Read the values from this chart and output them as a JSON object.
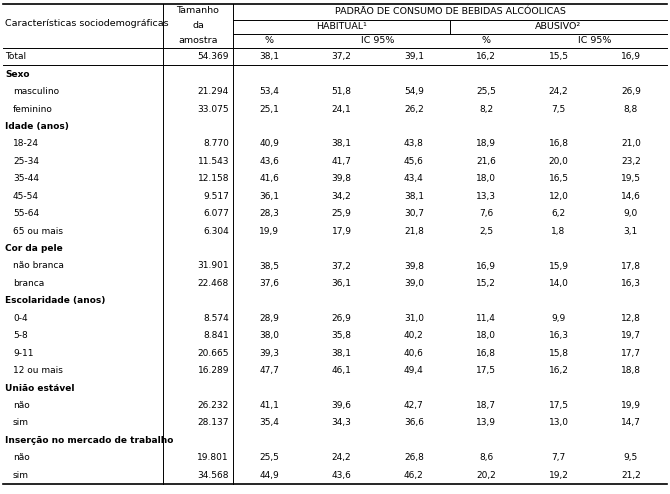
{
  "title_main": "PADRÃO DE CONSUMO DE BEBIDAS ALCÓOLICAS",
  "col1_label": "Características sociodemográficas",
  "tamanho_label": [
    "Tamanho",
    "da",
    "amostra"
  ],
  "habitual_label": "HABITUAL¹",
  "abusivo_label": "ABUSIVO²",
  "pct_label": "%",
  "ic_label": "IC 95%",
  "rows": [
    {
      "label": "Total",
      "indent": false,
      "bold": false,
      "sample": "54.369",
      "vals": [
        "38,1",
        "37,2",
        "39,1",
        "16,2",
        "15,5",
        "16,9"
      ]
    },
    {
      "label": "Sexo",
      "indent": false,
      "bold": true,
      "sample": "",
      "vals": [
        "",
        "",
        "",
        "",
        "",
        ""
      ]
    },
    {
      "label": "masculino",
      "indent": true,
      "bold": false,
      "sample": "21.294",
      "vals": [
        "53,4",
        "51,8",
        "54,9",
        "25,5",
        "24,2",
        "26,9"
      ]
    },
    {
      "label": "feminino",
      "indent": true,
      "bold": false,
      "sample": "33.075",
      "vals": [
        "25,1",
        "24,1",
        "26,2",
        "8,2",
        "7,5",
        "8,8"
      ]
    },
    {
      "label": "Idade (anos)",
      "indent": false,
      "bold": true,
      "sample": "",
      "vals": [
        "",
        "",
        "",
        "",
        "",
        ""
      ]
    },
    {
      "label": "18-24",
      "indent": true,
      "bold": false,
      "sample": "8.770",
      "vals": [
        "40,9",
        "38,1",
        "43,8",
        "18,9",
        "16,8",
        "21,0"
      ]
    },
    {
      "label": "25-34",
      "indent": true,
      "bold": false,
      "sample": "11.543",
      "vals": [
        "43,6",
        "41,7",
        "45,6",
        "21,6",
        "20,0",
        "23,2"
      ]
    },
    {
      "label": "35-44",
      "indent": true,
      "bold": false,
      "sample": "12.158",
      "vals": [
        "41,6",
        "39,8",
        "43,4",
        "18,0",
        "16,5",
        "19,5"
      ]
    },
    {
      "label": "45-54",
      "indent": true,
      "bold": false,
      "sample": "9.517",
      "vals": [
        "36,1",
        "34,2",
        "38,1",
        "13,3",
        "12,0",
        "14,6"
      ]
    },
    {
      "label": "55-64",
      "indent": true,
      "bold": false,
      "sample": "6.077",
      "vals": [
        "28,3",
        "25,9",
        "30,7",
        "7,6",
        "6,2",
        "9,0"
      ]
    },
    {
      "label": "65 ou mais",
      "indent": true,
      "bold": false,
      "sample": "6.304",
      "vals": [
        "19,9",
        "17,9",
        "21,8",
        "2,5",
        "1,8",
        "3,1"
      ]
    },
    {
      "label": "Cor da pele",
      "indent": false,
      "bold": true,
      "sample": "",
      "vals": [
        "",
        "",
        "",
        "",
        "",
        ""
      ]
    },
    {
      "label": "não branca",
      "indent": true,
      "bold": false,
      "sample": "31.901",
      "vals": [
        "38,5",
        "37,2",
        "39,8",
        "16,9",
        "15,9",
        "17,8"
      ]
    },
    {
      "label": "branca",
      "indent": true,
      "bold": false,
      "sample": "22.468",
      "vals": [
        "37,6",
        "36,1",
        "39,0",
        "15,2",
        "14,0",
        "16,3"
      ]
    },
    {
      "label": "Escolaridade (anos)",
      "indent": false,
      "bold": true,
      "sample": "",
      "vals": [
        "",
        "",
        "",
        "",
        "",
        ""
      ]
    },
    {
      "label": "0-4",
      "indent": true,
      "bold": false,
      "sample": "8.574",
      "vals": [
        "28,9",
        "26,9",
        "31,0",
        "11,4",
        "9,9",
        "12,8"
      ]
    },
    {
      "label": "5-8",
      "indent": true,
      "bold": false,
      "sample": "8.841",
      "vals": [
        "38,0",
        "35,8",
        "40,2",
        "18,0",
        "16,3",
        "19,7"
      ]
    },
    {
      "label": "9-11",
      "indent": true,
      "bold": false,
      "sample": "20.665",
      "vals": [
        "39,3",
        "38,1",
        "40,6",
        "16,8",
        "15,8",
        "17,7"
      ]
    },
    {
      "label": "12 ou mais",
      "indent": true,
      "bold": false,
      "sample": "16.289",
      "vals": [
        "47,7",
        "46,1",
        "49,4",
        "17,5",
        "16,2",
        "18,8"
      ]
    },
    {
      "label": "União estável",
      "indent": false,
      "bold": true,
      "sample": "",
      "vals": [
        "",
        "",
        "",
        "",
        "",
        ""
      ]
    },
    {
      "label": "não",
      "indent": true,
      "bold": false,
      "sample": "26.232",
      "vals": [
        "41,1",
        "39,6",
        "42,7",
        "18,7",
        "17,5",
        "19,9"
      ]
    },
    {
      "label": "sim",
      "indent": true,
      "bold": false,
      "sample": "28.137",
      "vals": [
        "35,4",
        "34,3",
        "36,6",
        "13,9",
        "13,0",
        "14,7"
      ]
    },
    {
      "label": "Inserção no mercado de trabalho",
      "indent": false,
      "bold": true,
      "sample": "",
      "vals": [
        "",
        "",
        "",
        "",
        "",
        ""
      ]
    },
    {
      "label": "não",
      "indent": true,
      "bold": false,
      "sample": "19.801",
      "vals": [
        "25,5",
        "24,2",
        "26,8",
        "8,6",
        "7,7",
        "9,5"
      ]
    },
    {
      "label": "sim",
      "indent": true,
      "bold": false,
      "sample": "34.568",
      "vals": [
        "44,9",
        "43,6",
        "46,2",
        "20,2",
        "19,2",
        "21,2"
      ]
    }
  ],
  "bg_color": "#ffffff",
  "text_color": "#000000",
  "line_color": "#000000",
  "font_size_header": 6.8,
  "font_size_data": 6.5,
  "font_size_label": 6.5
}
